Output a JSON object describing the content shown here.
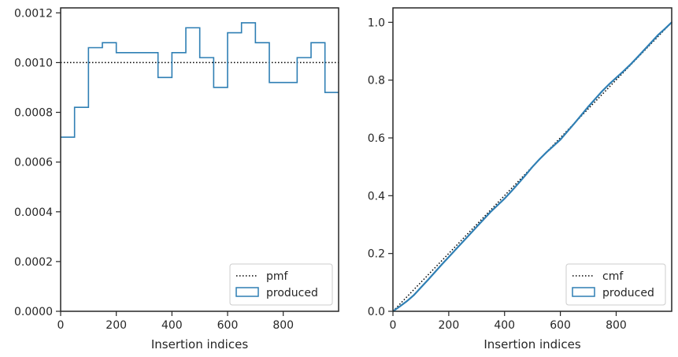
{
  "chart_data": [
    {
      "type": "line",
      "subtype": "step-histogram",
      "xlabel": "Insertion indices",
      "ylabel": "",
      "xlim": [
        0,
        999
      ],
      "ylim": [
        0,
        0.00122
      ],
      "xticks": [
        0,
        200,
        400,
        600,
        800
      ],
      "xtick_labels": [
        "0",
        "200",
        "400",
        "600",
        "800"
      ],
      "yticks": [
        0,
        0.0002,
        0.0004,
        0.0006,
        0.0008,
        0.001,
        0.0012
      ],
      "ytick_labels": [
        "0.0000",
        "0.0002",
        "0.0004",
        "0.0006",
        "0.0008",
        "0.0010",
        "0.0012"
      ],
      "grid": false,
      "legend_position": "lower-right",
      "reference": {
        "name": "pmf",
        "value": 0.001,
        "style": "dotted",
        "color": "#000000"
      },
      "series": [
        {
          "name": "produced",
          "color": "#2f7fb4",
          "bin_edges": [
            0,
            50,
            100,
            150,
            200,
            250,
            300,
            350,
            400,
            450,
            500,
            550,
            600,
            650,
            700,
            750,
            800,
            850,
            900,
            950,
            999
          ],
          "values": [
            0.0007,
            0.00082,
            0.00106,
            0.00108,
            0.00104,
            0.00104,
            0.00104,
            0.00094,
            0.00104,
            0.00114,
            0.00102,
            0.0009,
            0.00112,
            0.00116,
            0.00108,
            0.00092,
            0.00092,
            0.00102,
            0.00108,
            0.00088
          ]
        }
      ]
    },
    {
      "type": "line",
      "xlabel": "Insertion indices",
      "ylabel": "",
      "xlim": [
        0,
        999
      ],
      "ylim": [
        0,
        1.05
      ],
      "xticks": [
        0,
        200,
        400,
        600,
        800
      ],
      "xtick_labels": [
        "0",
        "200",
        "400",
        "600",
        "800"
      ],
      "yticks": [
        0,
        0.2,
        0.4,
        0.6,
        0.8,
        1.0
      ],
      "ytick_labels": [
        "0.0",
        "0.2",
        "0.4",
        "0.6",
        "0.8",
        "1.0"
      ],
      "grid": false,
      "legend_position": "lower-right",
      "reference": {
        "name": "cmf",
        "points": [
          [
            0,
            0
          ],
          [
            999,
            1.0
          ]
        ],
        "style": "dotted",
        "color": "#000000"
      },
      "series": [
        {
          "name": "produced",
          "color": "#2f7fb4",
          "x": [
            0,
            25,
            50,
            75,
            100,
            125,
            150,
            175,
            200,
            225,
            250,
            275,
            300,
            325,
            350,
            375,
            400,
            425,
            450,
            475,
            500,
            525,
            550,
            575,
            600,
            625,
            650,
            675,
            700,
            725,
            750,
            775,
            800,
            825,
            850,
            875,
            900,
            925,
            950,
            975,
            999
          ],
          "y": [
            0.0,
            0.017,
            0.035,
            0.056,
            0.082,
            0.108,
            0.135,
            0.162,
            0.188,
            0.214,
            0.24,
            0.266,
            0.292,
            0.318,
            0.344,
            0.367,
            0.39,
            0.416,
            0.443,
            0.471,
            0.5,
            0.526,
            0.55,
            0.572,
            0.594,
            0.622,
            0.65,
            0.679,
            0.708,
            0.735,
            0.762,
            0.786,
            0.808,
            0.83,
            0.853,
            0.878,
            0.904,
            0.93,
            0.956,
            0.978,
            1.0
          ]
        }
      ]
    }
  ]
}
